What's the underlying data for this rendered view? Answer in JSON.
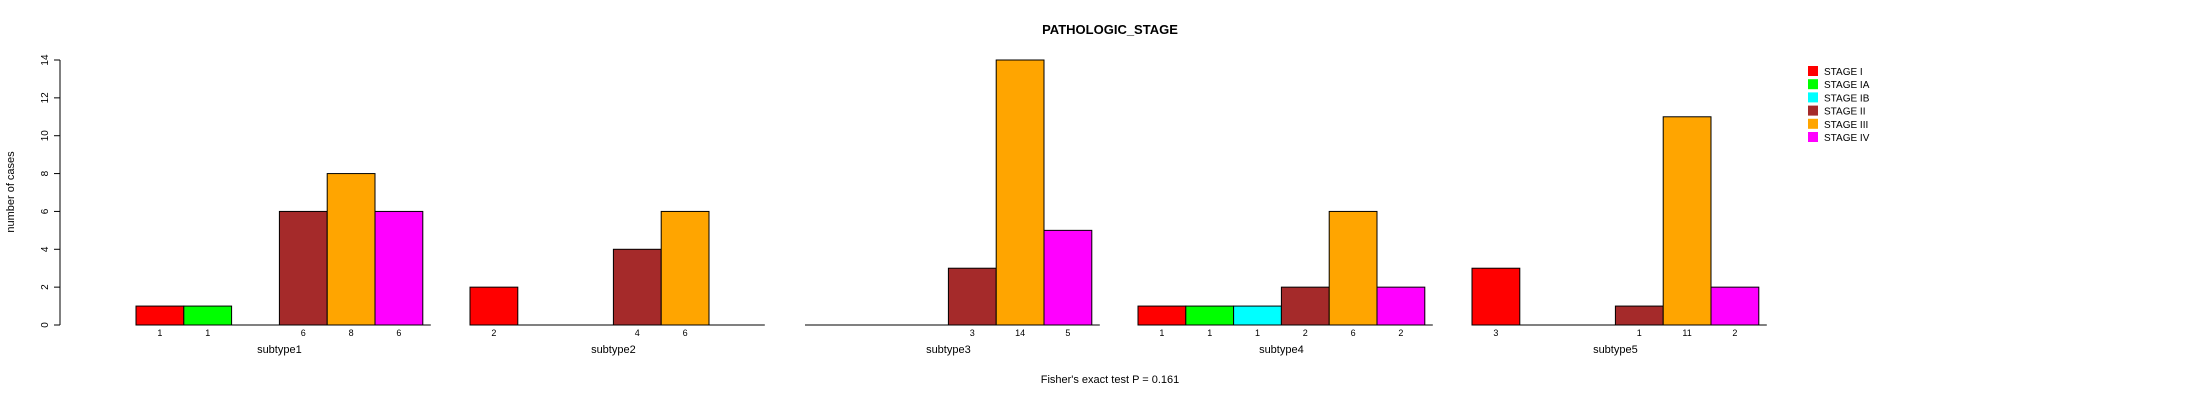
{
  "chart_data": {
    "type": "bar",
    "title": "PATHOLOGIC_STAGE",
    "ylabel": "number of cases",
    "xlabel": "",
    "footer": "Fisher's exact test P = 0.161",
    "ylim": [
      0,
      14
    ],
    "yticks": [
      0,
      2,
      4,
      6,
      8,
      10,
      12,
      14
    ],
    "grid": false,
    "legend_position": "top-right",
    "categories": [
      "subtype1",
      "subtype2",
      "subtype3",
      "subtype4",
      "subtype5"
    ],
    "series": [
      {
        "name": "STAGE I",
        "color": "#ff0000",
        "values": [
          1,
          2,
          0,
          1,
          3
        ]
      },
      {
        "name": "STAGE IA",
        "color": "#00ff00",
        "values": [
          1,
          0,
          0,
          1,
          0
        ]
      },
      {
        "name": "STAGE IB",
        "color": "#00ffff",
        "values": [
          0,
          0,
          0,
          1,
          0
        ]
      },
      {
        "name": "STAGE II",
        "color": "#a52a2a",
        "values": [
          6,
          4,
          3,
          2,
          1
        ]
      },
      {
        "name": "STAGE III",
        "color": "#ffa500",
        "values": [
          8,
          6,
          14,
          6,
          11
        ]
      },
      {
        "name": "STAGE IV",
        "color": "#ff00ff",
        "values": [
          6,
          0,
          5,
          2,
          2
        ]
      }
    ]
  }
}
